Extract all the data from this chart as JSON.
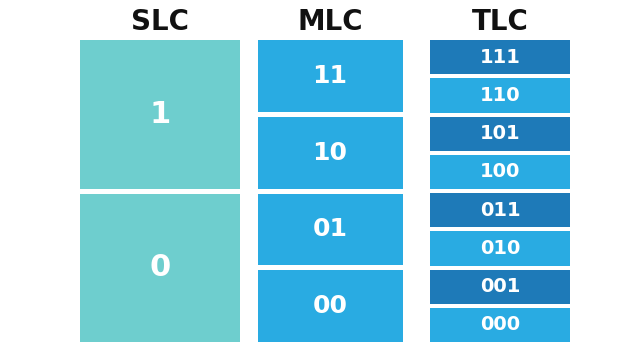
{
  "background_color": "#ffffff",
  "title_color": "#111111",
  "headers": [
    "SLC",
    "MLC",
    "TLC"
  ],
  "header_fontsize": 20,
  "header_fontweight": "bold",
  "slc_color": "#6ecece",
  "mlc_color": "#29abe2",
  "tlc_color_dark": "#1e7ab8",
  "tlc_color_light": "#29abe2",
  "text_color": "#ffffff",
  "slc_fontsize": 22,
  "mlc_fontsize": 18,
  "tlc_fontsize": 14,
  "slc_cells": [
    "1",
    "0"
  ],
  "mlc_cells": [
    "11",
    "10",
    "01",
    "00"
  ],
  "tlc_cells": [
    {
      "label": "111",
      "dark": true
    },
    {
      "label": "110",
      "dark": false
    },
    {
      "label": "101",
      "dark": true
    },
    {
      "label": "100",
      "dark": false
    },
    {
      "label": "011",
      "dark": true
    },
    {
      "label": "010",
      "dark": false
    },
    {
      "label": "001",
      "dark": true
    },
    {
      "label": "000",
      "dark": false
    }
  ],
  "fig_w": 6.4,
  "fig_h": 3.6,
  "dpi": 100
}
